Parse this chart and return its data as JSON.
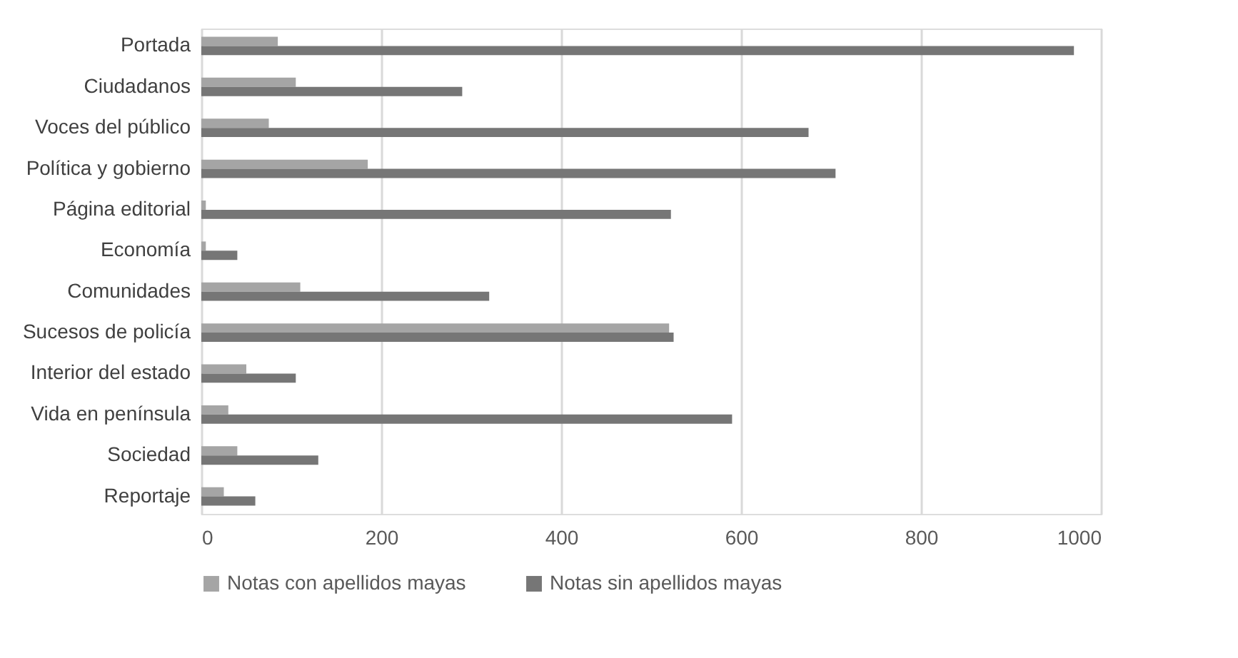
{
  "chart_data": {
    "type": "bar",
    "orientation": "horizontal",
    "categories": [
      "Portada",
      "Ciudadanos",
      "Voces del público",
      "Política y gobierno",
      "Página editorial",
      "Economía",
      "Comunidades",
      "Sucesos de policía",
      "Interior del estado",
      "Vida en península",
      "Sociedad",
      "Reportaje"
    ],
    "series": [
      {
        "name": "Notas con apellidos mayas",
        "color": "#a5a5a5",
        "values": [
          85,
          105,
          75,
          185,
          5,
          5,
          110,
          520,
          50,
          30,
          40,
          25
        ]
      },
      {
        "name": "Notas sin apellidos mayas",
        "color": "#767676",
        "values": [
          970,
          290,
          675,
          705,
          522,
          40,
          320,
          525,
          105,
          590,
          130,
          60
        ]
      }
    ],
    "xlim": [
      0,
      1000
    ],
    "xticks": [
      0,
      200,
      400,
      600,
      800,
      1000
    ],
    "grid": "x",
    "legend": "bottom"
  }
}
